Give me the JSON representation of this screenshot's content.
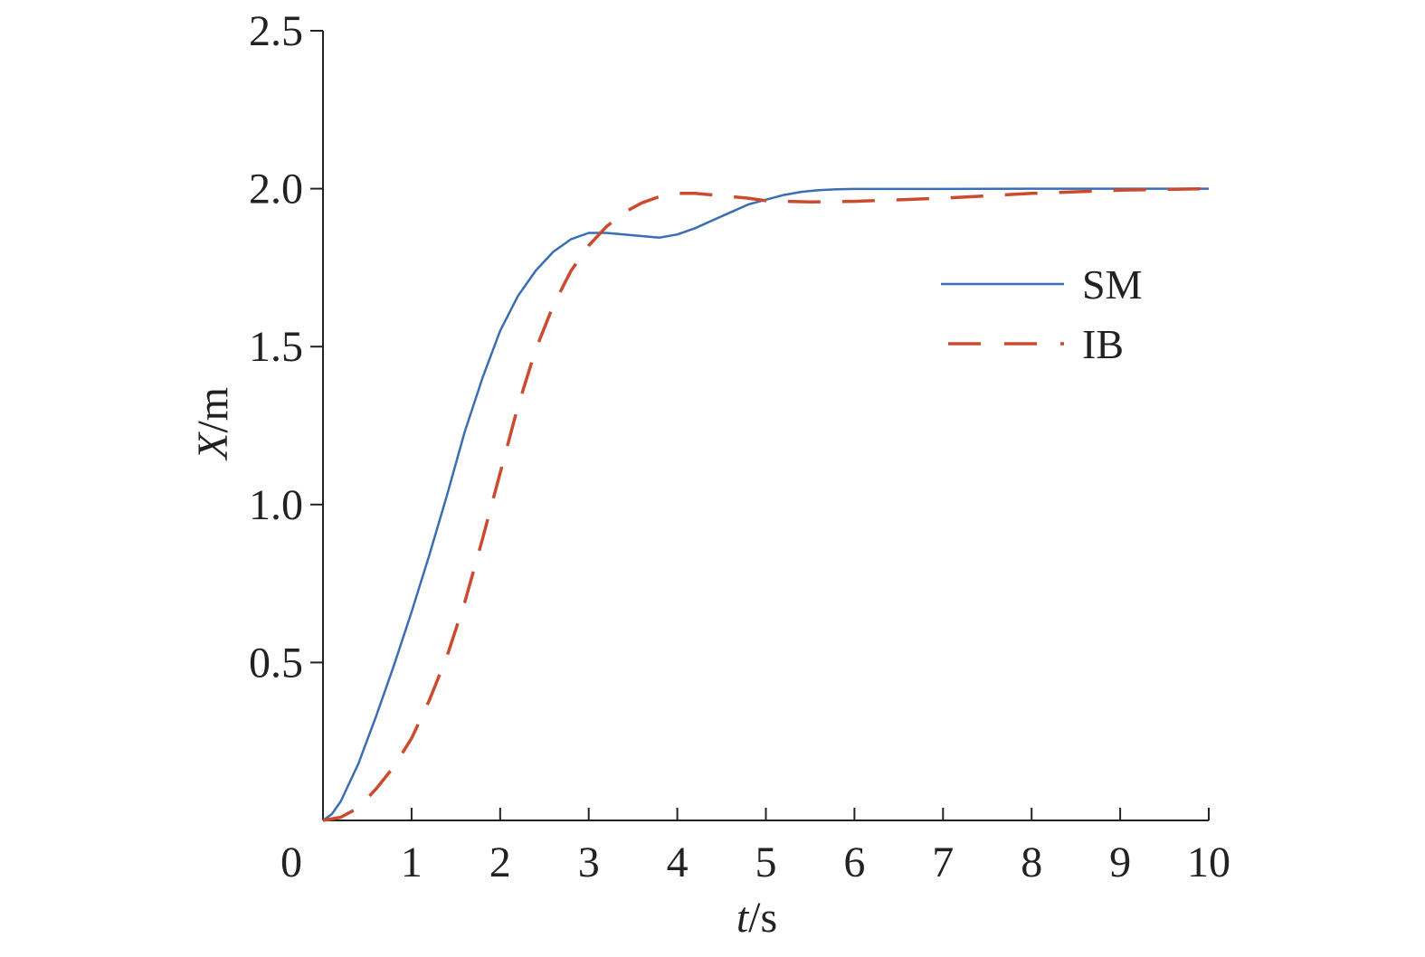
{
  "chart_data": {
    "type": "line",
    "title": "",
    "xlabel": {
      "italic": "t",
      "unit": "/s"
    },
    "ylabel": {
      "italic": "X",
      "unit": "/m"
    },
    "xlim": [
      0,
      10
    ],
    "ylim": [
      0,
      2.5
    ],
    "xticks": [
      0,
      1,
      2,
      3,
      4,
      5,
      6,
      7,
      8,
      9,
      10
    ],
    "xtick_labels": [
      "0",
      "1",
      "2",
      "3",
      "4",
      "5",
      "6",
      "7",
      "8",
      "9",
      "10"
    ],
    "yticks": [
      0.5,
      1.0,
      1.5,
      2.0,
      2.5
    ],
    "ytick_labels": [
      "0.5",
      "1.0",
      "1.5",
      "2.0",
      "2.5"
    ],
    "grid": false,
    "legend_position": "right, upper-middle",
    "series": [
      {
        "name": "SM",
        "color": "#3a6db3",
        "dash": "solid",
        "x": [
          0,
          0.1,
          0.2,
          0.4,
          0.6,
          0.8,
          1.0,
          1.2,
          1.4,
          1.6,
          1.8,
          2.0,
          2.2,
          2.4,
          2.6,
          2.8,
          3.0,
          3.2,
          3.4,
          3.6,
          3.8,
          4.0,
          4.2,
          4.4,
          4.6,
          4.8,
          5.0,
          5.2,
          5.4,
          5.6,
          5.8,
          6.0,
          7.0,
          8.0,
          9.0,
          10.0
        ],
        "y": [
          0,
          0.02,
          0.06,
          0.18,
          0.33,
          0.49,
          0.66,
          0.84,
          1.03,
          1.23,
          1.4,
          1.55,
          1.66,
          1.74,
          1.8,
          1.84,
          1.86,
          1.86,
          1.855,
          1.85,
          1.845,
          1.855,
          1.875,
          1.9,
          1.925,
          1.95,
          1.965,
          1.98,
          1.99,
          1.995,
          1.998,
          1.999,
          1.999,
          2.0,
          2.0,
          2.0
        ]
      },
      {
        "name": "IB",
        "color": "#cc4a2e",
        "dash": "dashed",
        "x": [
          0,
          0.2,
          0.4,
          0.6,
          0.8,
          1.0,
          1.2,
          1.4,
          1.6,
          1.8,
          2.0,
          2.2,
          2.4,
          2.6,
          2.8,
          3.0,
          3.2,
          3.4,
          3.6,
          3.8,
          4.0,
          4.2,
          4.4,
          4.6,
          4.8,
          5.0,
          5.5,
          6.0,
          7.0,
          8.0,
          9.0,
          10.0
        ],
        "y": [
          0,
          0.01,
          0.04,
          0.1,
          0.17,
          0.26,
          0.38,
          0.52,
          0.69,
          0.89,
          1.1,
          1.31,
          1.49,
          1.63,
          1.74,
          1.82,
          1.88,
          1.925,
          1.955,
          1.975,
          1.985,
          1.985,
          1.98,
          1.975,
          1.97,
          1.962,
          1.958,
          1.96,
          1.97,
          1.985,
          1.995,
          2.0
        ]
      }
    ]
  }
}
